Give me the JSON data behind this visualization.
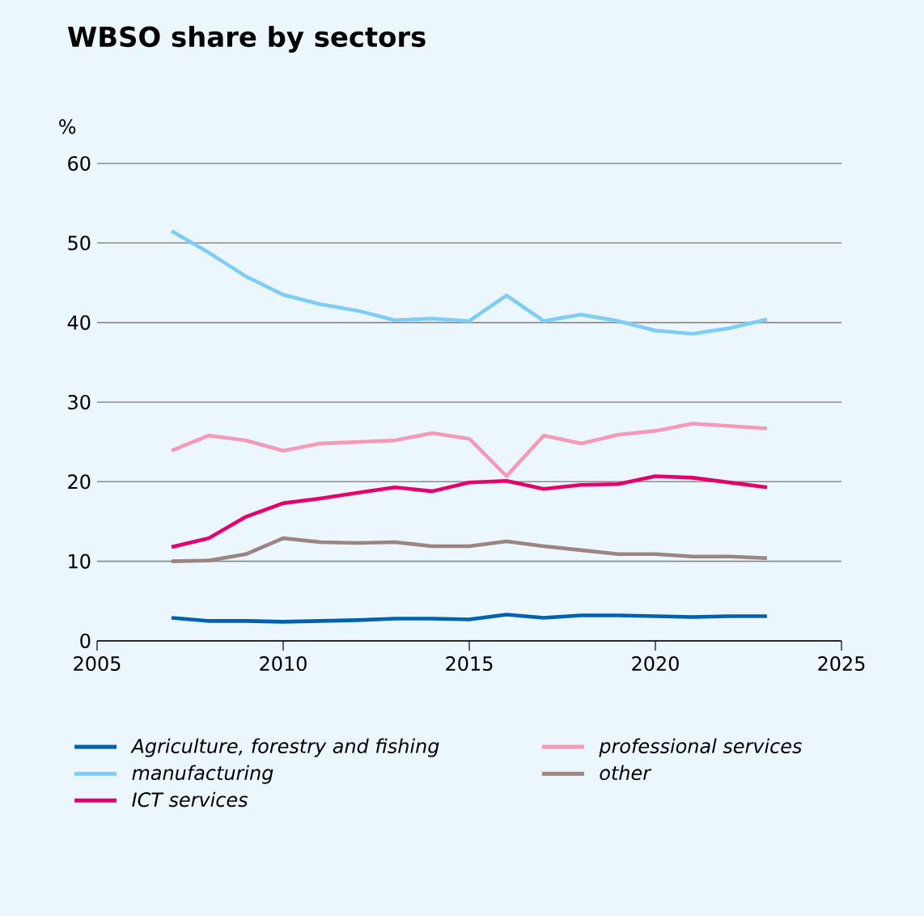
{
  "chart_data": {
    "type": "line",
    "title": "WBSO share by sectors",
    "ylabel": "%",
    "x": [
      2007,
      2008,
      2009,
      2010,
      2011,
      2012,
      2013,
      2014,
      2015,
      2016,
      2017,
      2018,
      2019,
      2020,
      2021,
      2022,
      2023
    ],
    "series": [
      {
        "name": "Agriculture, forestry and fishing",
        "color": "#0061b0",
        "values": [
          2.9,
          2.5,
          2.5,
          2.4,
          2.5,
          2.6,
          2.8,
          2.8,
          2.7,
          3.3,
          2.9,
          3.2,
          3.2,
          3.1,
          3.0,
          3.1,
          3.1
        ]
      },
      {
        "name": "manufacturing",
        "color": "#7fcdf5",
        "values": [
          51.5,
          48.8,
          45.8,
          43.5,
          42.3,
          41.5,
          40.3,
          40.5,
          40.2,
          43.4,
          40.2,
          41.0,
          40.2,
          39.0,
          38.6,
          39.3,
          40.4
        ]
      },
      {
        "name": "ICT services",
        "color": "#e5006e",
        "values": [
          11.8,
          12.9,
          15.6,
          17.3,
          17.9,
          18.6,
          19.3,
          18.8,
          19.9,
          20.1,
          19.1,
          19.6,
          19.7,
          20.7,
          20.5,
          19.9,
          19.3
        ]
      },
      {
        "name": "professional services",
        "color": "#f49ab4",
        "values": [
          23.9,
          25.8,
          25.2,
          23.9,
          24.8,
          25.0,
          25.2,
          26.1,
          25.4,
          20.7,
          25.8,
          24.8,
          25.9,
          26.4,
          27.3,
          27.0,
          26.7
        ]
      },
      {
        "name": "other",
        "color": "#9b8580",
        "values": [
          10.0,
          10.1,
          10.9,
          12.9,
          12.4,
          12.3,
          12.4,
          11.9,
          11.9,
          12.5,
          11.9,
          11.4,
          10.9,
          10.9,
          10.6,
          10.6,
          10.4
        ]
      }
    ],
    "xlim": [
      2005,
      2025
    ],
    "xticks": [
      2005,
      2010,
      2015,
      2020,
      2025
    ],
    "ylim": [
      0,
      60
    ],
    "yticks": [
      0,
      10,
      20,
      30,
      40,
      50,
      60
    ],
    "grid": "y",
    "legend": "bottom",
    "marker": "none",
    "line_style": "solid"
  }
}
